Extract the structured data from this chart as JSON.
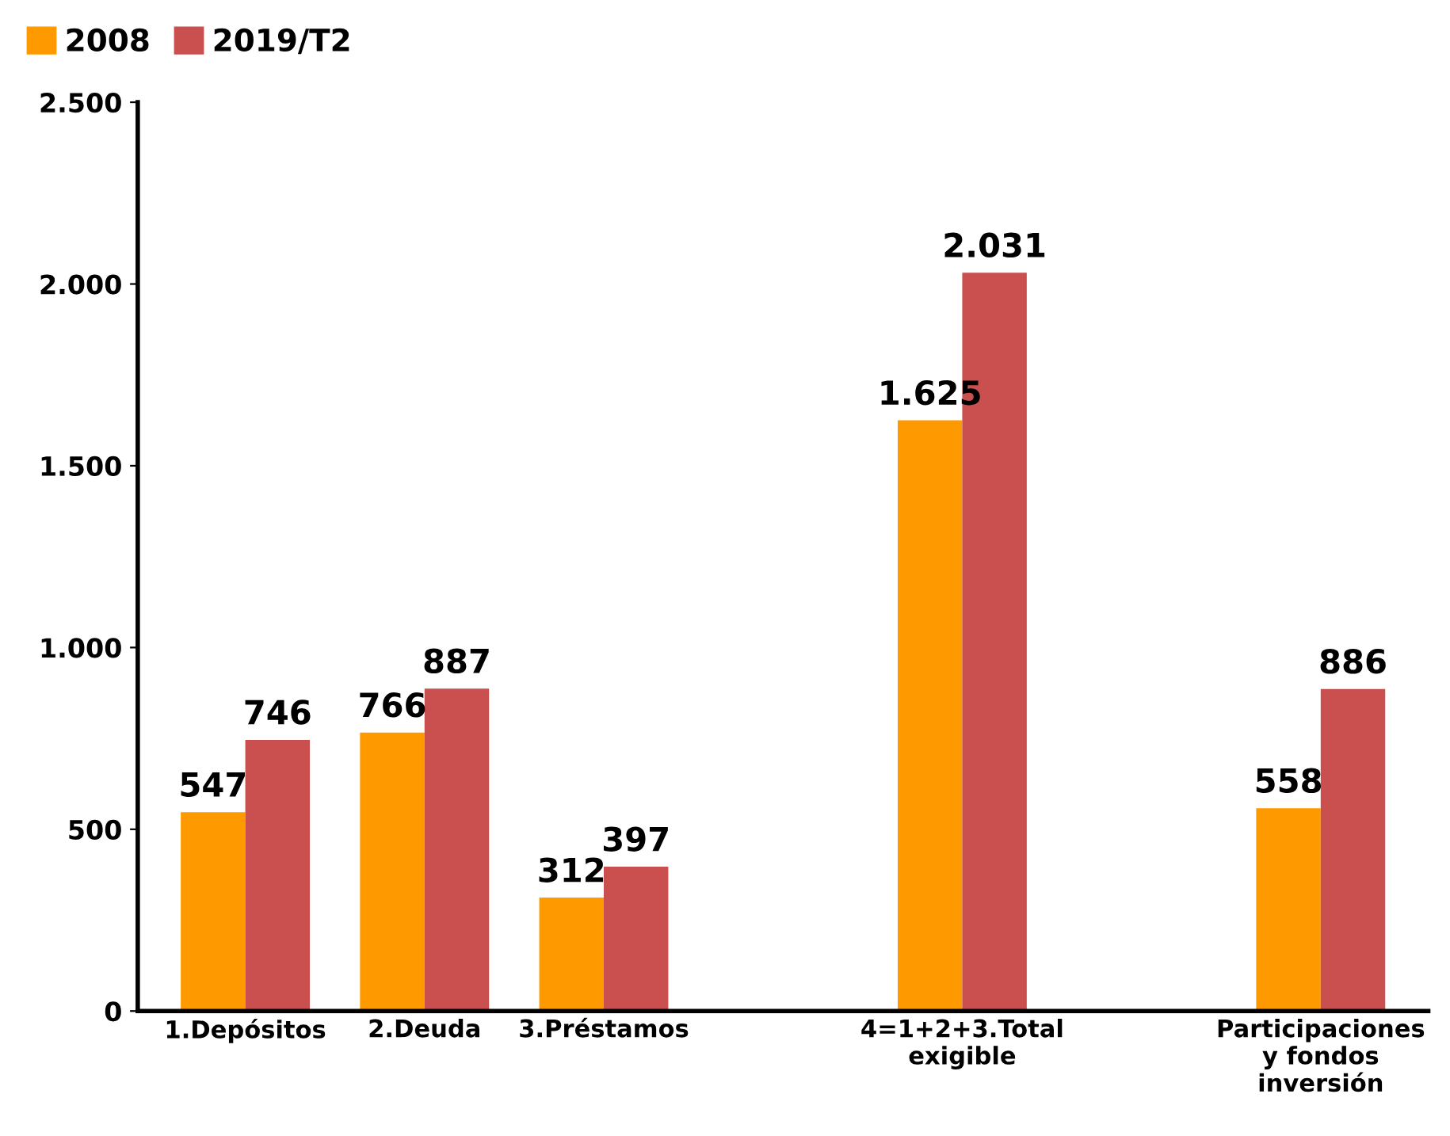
{
  "chart_data": {
    "type": "bar",
    "categories": [
      "1.Depósitos",
      "2.Deuda",
      "3.Préstamos",
      null,
      "4=1+2+3.Total\nexigible",
      null,
      "Participaciones\ny fondos\ninversión"
    ],
    "series": [
      {
        "name": "2008",
        "color": "#ff9900",
        "values": [
          547,
          766,
          312,
          null,
          1625,
          null,
          558
        ],
        "value_labels": [
          "547",
          "766",
          "312",
          null,
          "1.625",
          null,
          "558"
        ]
      },
      {
        "name": "2019/T2",
        "color": "#c9504f",
        "values": [
          746,
          887,
          397,
          null,
          2031,
          null,
          886
        ],
        "value_labels": [
          "746",
          "887",
          "397",
          null,
          "2.031",
          null,
          "886"
        ]
      }
    ],
    "ylim": [
      0,
      2500
    ],
    "yticks": [
      0,
      {
        "value": 500,
        "label": "500"
      },
      {
        "value": 1000,
        "label": "1.000"
      },
      {
        "value": 1500,
        "label": "1.500"
      },
      {
        "value": 2000,
        "label": "2.000"
      },
      {
        "value": 2500,
        "label": "2.500"
      }
    ],
    "grid": false,
    "legend": "top left"
  }
}
